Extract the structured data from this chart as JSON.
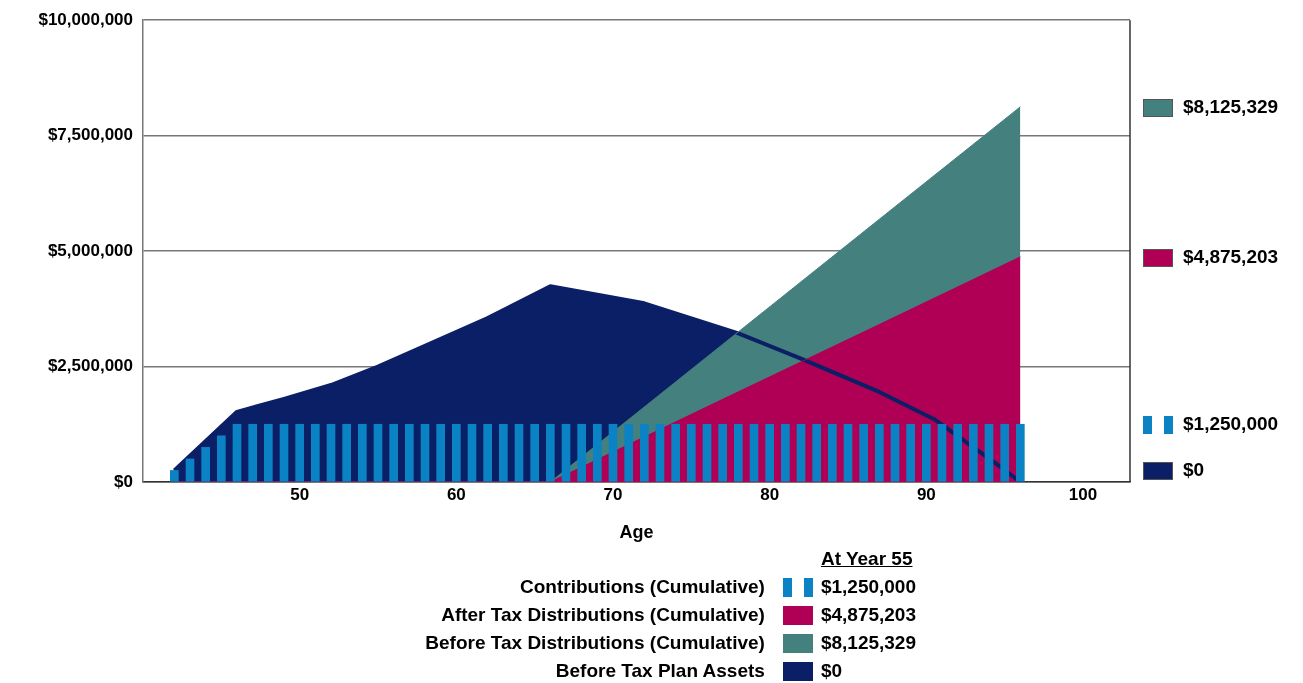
{
  "chart_data": {
    "type": "area",
    "xlabel": "Age",
    "legend": "bottom",
    "legend_title": "At Year 55",
    "grid": "y",
    "annotations": [
      "$1,250,000",
      "$4,875,203",
      "$8,125,329",
      "$0"
    ],
    "xlim": [
      40,
      103
    ],
    "xticks": [
      50,
      60,
      70,
      80,
      90,
      100
    ],
    "ylim": [
      0,
      10000000
    ],
    "yticks": [
      {
        "value": 0,
        "label": "$0"
      },
      {
        "value": 2500000,
        "label": "$2,500,000"
      },
      {
        "value": 5000000,
        "label": "$5,000,000"
      },
      {
        "value": 7500000,
        "label": "$7,500,000"
      },
      {
        "value": 10000000,
        "label": "$10,000,000"
      }
    ],
    "x": [
      42,
      43,
      44,
      45,
      46,
      47,
      48,
      49,
      50,
      51,
      52,
      53,
      54,
      55,
      56,
      57,
      58,
      59,
      60,
      61,
      62,
      63,
      64,
      65,
      66,
      67,
      68,
      69,
      70,
      71,
      72,
      73,
      74,
      75,
      76,
      77,
      78,
      79,
      80,
      81,
      82,
      83,
      84,
      85,
      86,
      87,
      88,
      89,
      90,
      91,
      92,
      93,
      94,
      95,
      96
    ],
    "series": [
      {
        "name": "Contributions (Cumulative)",
        "type": "bar",
        "color": "#0a82c4",
        "values": [
          250000,
          500000,
          750000,
          1000000,
          1250000,
          1250000,
          1250000,
          1250000,
          1250000,
          1250000,
          1250000,
          1250000,
          1250000,
          1250000,
          1250000,
          1250000,
          1250000,
          1250000,
          1250000,
          1250000,
          1250000,
          1250000,
          1250000,
          1250000,
          1250000,
          1250000,
          1250000,
          1250000,
          1250000,
          1250000,
          1250000,
          1250000,
          1250000,
          1250000,
          1250000,
          1250000,
          1250000,
          1250000,
          1250000,
          1250000,
          1250000,
          1250000,
          1250000,
          1250000,
          1250000,
          1250000,
          1250000,
          1250000,
          1250000,
          1250000,
          1250000,
          1250000,
          1250000,
          1250000,
          1250000
        ]
      },
      {
        "name": "After Tax Distributions (Cumulative)",
        "color": "#b00055",
        "x": [
          42,
          66,
          67,
          77,
          87,
          96
        ],
        "values": [
          0,
          0,
          160000,
          1790000,
          3410000,
          4875203
        ]
      },
      {
        "name": "Before Tax Distributions (Cumulative)",
        "color": "#44807e",
        "x": [
          42,
          66,
          67,
          77,
          87,
          96
        ],
        "values": [
          0,
          0,
          270000,
          2980000,
          5690000,
          8125329
        ]
      },
      {
        "name": "Before Tax Plan Assets",
        "color": "#0b1f66",
        "x": [
          42,
          46,
          49,
          52,
          55,
          58,
          62,
          66,
          72,
          78,
          82,
          87,
          90.5,
          95,
          96
        ],
        "values": [
          250000,
          1520000,
          1800000,
          2100000,
          2500000,
          2950000,
          3550000,
          4240000,
          3870000,
          3220000,
          2670000,
          1950000,
          1360000,
          260000,
          0
        ]
      }
    ]
  }
}
